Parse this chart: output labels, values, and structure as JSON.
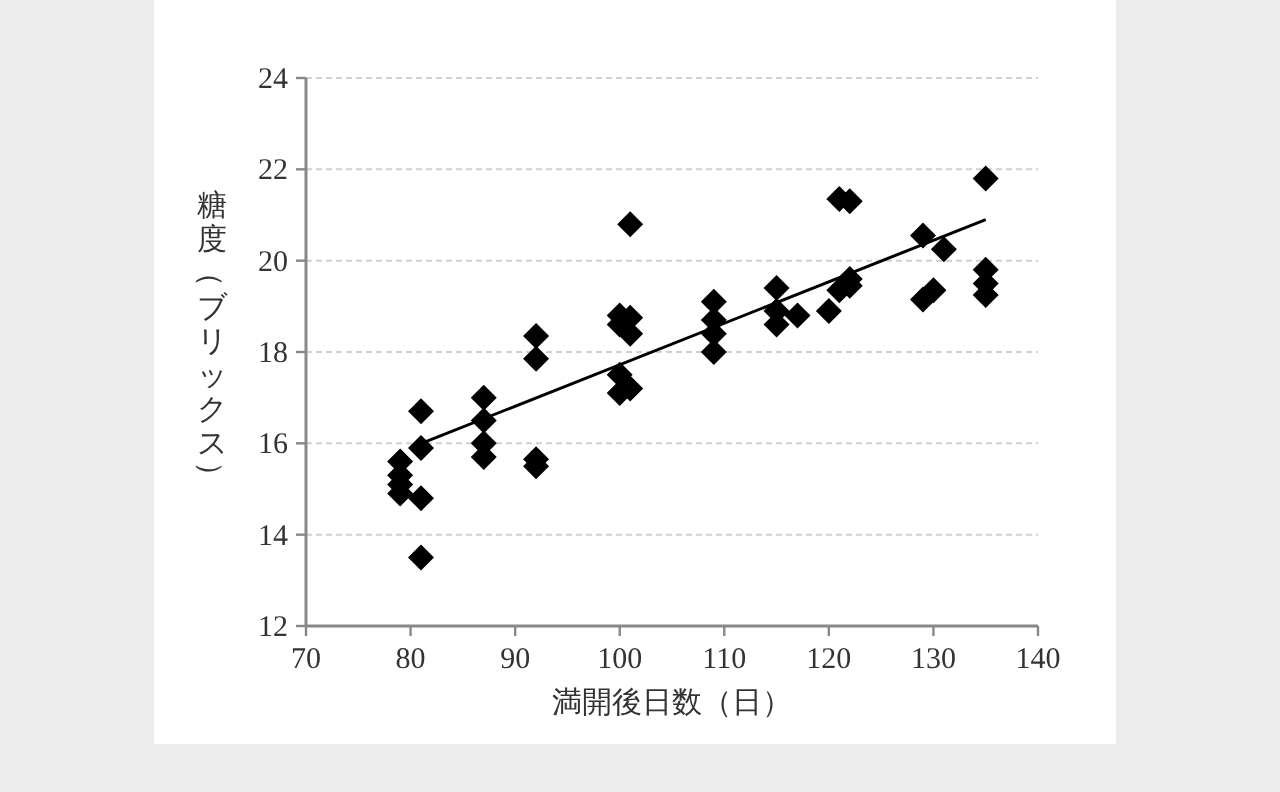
{
  "chart_data": {
    "type": "scatter",
    "xlabel": "満開後日数（日）",
    "ylabel": "糖度（ブリックス）",
    "xlim": [
      70,
      140
    ],
    "xticks": [
      70,
      80,
      90,
      100,
      110,
      120,
      130,
      140
    ],
    "ylim": [
      12,
      24
    ],
    "yticks": [
      12,
      14,
      16,
      18,
      20,
      22,
      24
    ],
    "grid": "y",
    "series": [
      {
        "color": "#000000",
        "marker": "diamond",
        "x": [
          79,
          79,
          79,
          79,
          81,
          81,
          81,
          81,
          87,
          87,
          87,
          87,
          92,
          92,
          92,
          92,
          100,
          100,
          100,
          100,
          101,
          101,
          101,
          101,
          109,
          109,
          109,
          109,
          115,
          115,
          115,
          117,
          120,
          121,
          121,
          122,
          122,
          122,
          129,
          129,
          130,
          131,
          135,
          135,
          135,
          135
        ],
        "values": [
          15.6,
          15.3,
          15.1,
          14.9,
          16.7,
          15.9,
          14.8,
          13.5,
          17.0,
          16.5,
          16.0,
          15.7,
          18.35,
          17.85,
          15.65,
          15.5,
          18.8,
          18.6,
          17.5,
          17.1,
          20.8,
          18.75,
          18.4,
          17.2,
          19.1,
          18.7,
          18.4,
          18.0,
          19.4,
          18.9,
          18.6,
          18.8,
          18.9,
          21.35,
          19.35,
          21.3,
          19.6,
          19.45,
          20.55,
          19.15,
          19.35,
          20.25,
          21.8,
          19.8,
          19.5,
          19.25
        ]
      },
      {
        "type": "line",
        "color": "#000000",
        "x": [
          80.5,
          135
        ],
        "values": [
          15.95,
          20.9
        ]
      }
    ]
  }
}
